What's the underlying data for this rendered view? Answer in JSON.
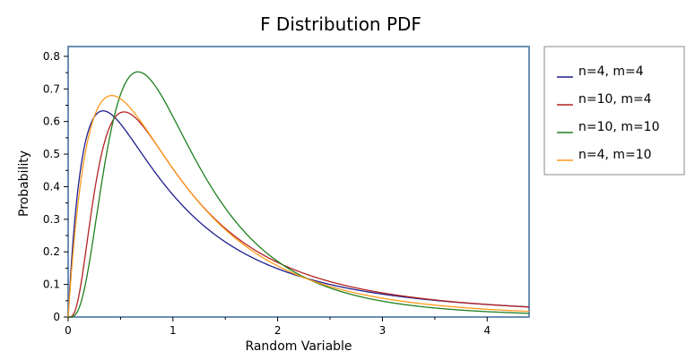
{
  "chart_data": {
    "type": "line",
    "title": "F Distribution PDF",
    "xlabel": "Random Variable",
    "ylabel": "Probability",
    "xlim": [
      0,
      4.4
    ],
    "ylim": [
      0,
      0.83
    ],
    "x_ticks": [
      "0",
      "1",
      "2",
      "3",
      "4"
    ],
    "y_ticks": [
      "0",
      "0.1",
      "0.2",
      "0.3",
      "0.4",
      "0.5",
      "0.6",
      "0.7",
      "0.8"
    ],
    "grid": false,
    "legend_position": "right",
    "series": [
      {
        "name": "n=4, m=4",
        "color": "#1f1f8f",
        "df1": 4,
        "df2": 4
      },
      {
        "name": "n=10, m=4",
        "color": "#b22222",
        "df1": 10,
        "df2": 4
      },
      {
        "name": "n=10, m=10",
        "color": "#1f7f1f",
        "df1": 10,
        "df2": 10
      },
      {
        "name": "n=4, m=10",
        "color": "#ff9a1a",
        "df1": 4,
        "df2": 10
      }
    ]
  }
}
